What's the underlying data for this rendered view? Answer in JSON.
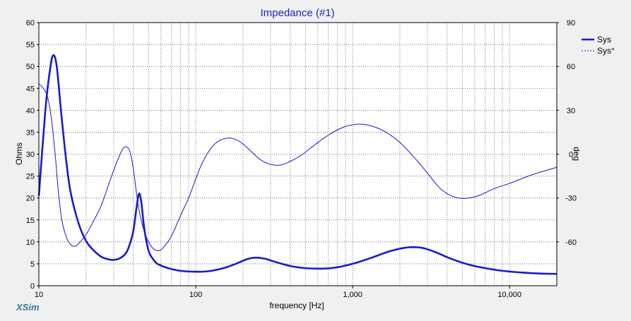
{
  "chart_data": {
    "type": "line",
    "title": "Impedance (#1)",
    "xlabel": "frequency [Hz]",
    "ylabel": "Ohms",
    "y2label": "deg",
    "x_scale": "log",
    "xlim": [
      10,
      20000
    ],
    "ylim": [
      0,
      60
    ],
    "y2lim": [
      -90,
      90
    ],
    "x_ticks": [
      "10",
      "100",
      "1,000",
      "10,000"
    ],
    "y_ticks": [
      "0",
      "5",
      "10",
      "15",
      "20",
      "25",
      "30",
      "35",
      "40",
      "45",
      "50",
      "55",
      "60"
    ],
    "y2_ticks": [
      "-60",
      "-30",
      "0",
      "30",
      "60",
      "90"
    ],
    "grid": true,
    "legend_position": "top-right",
    "series": [
      {
        "name": "Sys",
        "axis": "left",
        "style": "solid-bold",
        "color": "#1a1acc",
        "points": [
          [
            10,
            20.5
          ],
          [
            11,
            40
          ],
          [
            11.7,
            48.5
          ],
          [
            12.3,
            52.5
          ],
          [
            13,
            50
          ],
          [
            14,
            38
          ],
          [
            15,
            28
          ],
          [
            16,
            21
          ],
          [
            18,
            14
          ],
          [
            20,
            10.2
          ],
          [
            22,
            8.3
          ],
          [
            25,
            6.6
          ],
          [
            28,
            6.0
          ],
          [
            30,
            5.9
          ],
          [
            33,
            6.3
          ],
          [
            36,
            7.5
          ],
          [
            38,
            9.5
          ],
          [
            40,
            12.5
          ],
          [
            42,
            18
          ],
          [
            43.5,
            21
          ],
          [
            45,
            19
          ],
          [
            47,
            13
          ],
          [
            50,
            8
          ],
          [
            55,
            5.5
          ],
          [
            60,
            4.6
          ],
          [
            70,
            3.8
          ],
          [
            80,
            3.4
          ],
          [
            100,
            3.2
          ],
          [
            120,
            3.3
          ],
          [
            150,
            4.0
          ],
          [
            180,
            5.0
          ],
          [
            210,
            6.0
          ],
          [
            240,
            6.4
          ],
          [
            280,
            6.1
          ],
          [
            330,
            5.3
          ],
          [
            400,
            4.5
          ],
          [
            500,
            4.0
          ],
          [
            650,
            3.9
          ],
          [
            800,
            4.2
          ],
          [
            1000,
            5.0
          ],
          [
            1300,
            6.3
          ],
          [
            1700,
            7.8
          ],
          [
            2100,
            8.6
          ],
          [
            2400,
            8.8
          ],
          [
            2800,
            8.6
          ],
          [
            3400,
            7.6
          ],
          [
            4200,
            6.2
          ],
          [
            5500,
            4.8
          ],
          [
            7000,
            4.0
          ],
          [
            9000,
            3.4
          ],
          [
            12000,
            3.0
          ],
          [
            15000,
            2.8
          ],
          [
            20000,
            2.7
          ]
        ]
      },
      {
        "name": "Sys°",
        "axis": "right",
        "style": "dashed",
        "color": "#1a1acc",
        "points": [
          [
            10,
            48
          ],
          [
            10.5,
            46
          ],
          [
            11.3,
            40
          ],
          [
            12,
            25
          ],
          [
            12.7,
            0
          ],
          [
            13.3,
            -25
          ],
          [
            14,
            -45
          ],
          [
            15,
            -57
          ],
          [
            16,
            -62
          ],
          [
            17,
            -63
          ],
          [
            18,
            -61
          ],
          [
            20,
            -55
          ],
          [
            22,
            -47
          ],
          [
            25,
            -35
          ],
          [
            28,
            -20
          ],
          [
            31,
            -7
          ],
          [
            34,
            3
          ],
          [
            36,
            5
          ],
          [
            38,
            2
          ],
          [
            40,
            -10
          ],
          [
            43,
            -35
          ],
          [
            47,
            -53
          ],
          [
            52,
            -63
          ],
          [
            57,
            -66
          ],
          [
            62,
            -64
          ],
          [
            70,
            -56
          ],
          [
            80,
            -42
          ],
          [
            90,
            -30
          ],
          [
            100,
            -17
          ],
          [
            110,
            -6
          ],
          [
            125,
            4
          ],
          [
            140,
            9
          ],
          [
            160,
            11
          ],
          [
            180,
            10
          ],
          [
            200,
            7
          ],
          [
            230,
            1
          ],
          [
            260,
            -4
          ],
          [
            300,
            -7
          ],
          [
            345,
            -7.5
          ],
          [
            400,
            -5
          ],
          [
            480,
            0
          ],
          [
            600,
            8
          ],
          [
            750,
            15
          ],
          [
            900,
            19
          ],
          [
            1000,
            20
          ],
          [
            1100,
            20.5
          ],
          [
            1300,
            19.5
          ],
          [
            1600,
            15.5
          ],
          [
            2000,
            8
          ],
          [
            2500,
            -3
          ],
          [
            3000,
            -13
          ],
          [
            3500,
            -22
          ],
          [
            4000,
            -27
          ],
          [
            4700,
            -30
          ],
          [
            5500,
            -30
          ],
          [
            6500,
            -28
          ],
          [
            8000,
            -23.5
          ],
          [
            10000,
            -20
          ],
          [
            14000,
            -14
          ],
          [
            20000,
            -9
          ]
        ]
      }
    ]
  },
  "brand": "XSim"
}
